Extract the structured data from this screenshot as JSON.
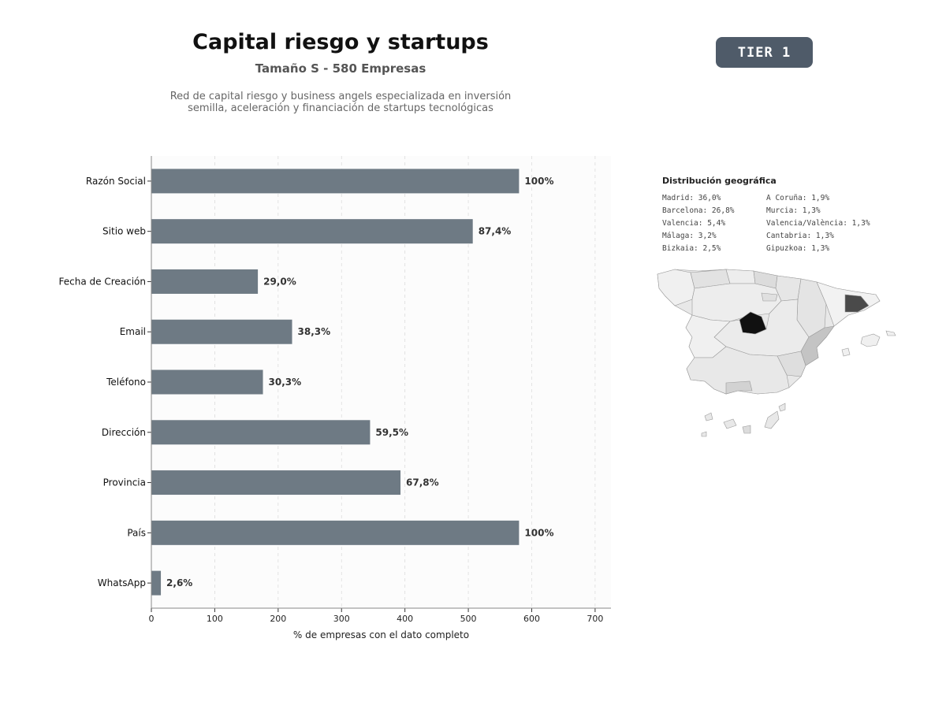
{
  "header": {
    "title": "Capital riesgo y startups",
    "subtitle": "Tamaño S - 580 Empresas",
    "description_line1": "Red de capital riesgo y business angels especializada en inversión",
    "description_line2": "semilla, aceleración y financiación de startups tecnológicas",
    "tier_label": "TIER 1"
  },
  "chart_data": {
    "type": "bar",
    "orientation": "horizontal",
    "categories": [
      "Razón Social",
      "Sitio web",
      "Fecha de Creación",
      "Email",
      "Teléfono",
      "Dirección",
      "Provincia",
      "País",
      "WhatsApp"
    ],
    "values": [
      580,
      507,
      168,
      222,
      176,
      345,
      393,
      580,
      15
    ],
    "data_labels": [
      "100%",
      "87,4%",
      "29,0%",
      "38,3%",
      "30,3%",
      "59,5%",
      "67,8%",
      "100%",
      "2,6%"
    ],
    "xlabel": "% de empresas con el dato completo",
    "ylabel": "",
    "xlim": [
      0,
      725
    ],
    "xticks": [
      0,
      100,
      200,
      300,
      400,
      500,
      600,
      700
    ],
    "grid": "vertical dashed",
    "bar_color": "#6e7a84"
  },
  "geo": {
    "title": "Distribución geográfica",
    "items": [
      "Madrid: 36,0%",
      "Barcelona: 26,8%",
      "Valencia: 5,4%",
      "Málaga: 3,2%",
      "Bizkaia: 2,5%",
      "A Coruña: 1,9%",
      "Murcia: 1,3%",
      "Valencia/València: 1,3%",
      "Cantabria: 1,3%",
      "Gipuzkoa: 1,3%"
    ],
    "highlight_colors": {
      "madrid": "#111111",
      "barcelona": "#4a4a4a",
      "valencia": "#c4c4c4",
      "other": "#efefef"
    }
  }
}
